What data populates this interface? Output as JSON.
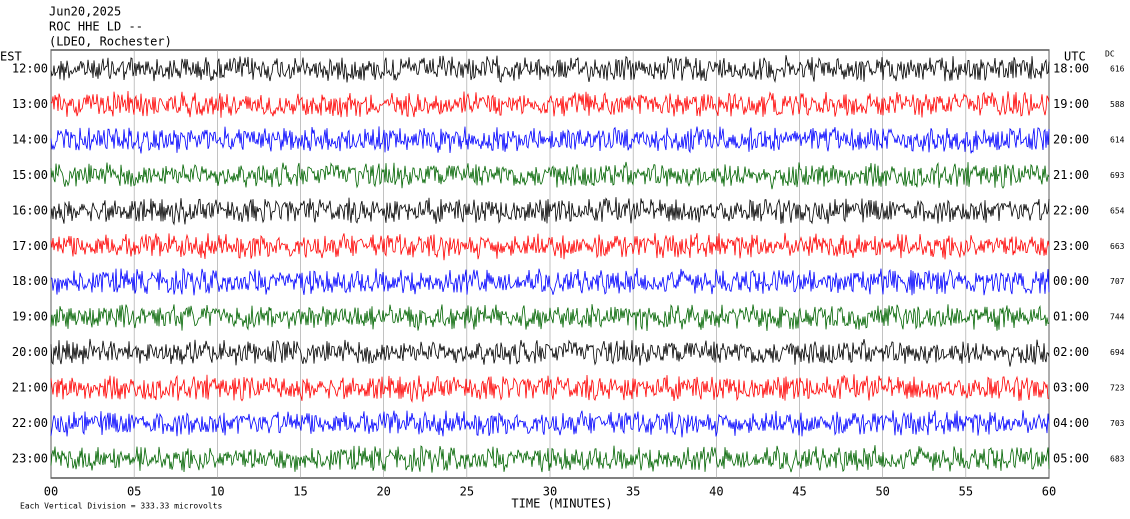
{
  "chart_data": {
    "type": "helicorder",
    "title": "Jun20,2025",
    "subtitle": "ROC HHE LD --",
    "source": "(LDEO, Rochester)",
    "left_axis_label": "EST",
    "right_axis_label": "UTC",
    "dc_label": "DC",
    "xlabel": "TIME (MINUTES)",
    "note": "Each Vertical Division =  333.33 microvolts",
    "categories": [
      "12:00",
      "13:00",
      "14:00",
      "15:00",
      "16:00",
      "17:00",
      "18:00",
      "19:00",
      "20:00",
      "21:00",
      "22:00",
      "23:00"
    ],
    "right_categories": [
      "18:00",
      "19:00",
      "20:00",
      "21:00",
      "22:00",
      "23:00",
      "00:00",
      "01:00",
      "02:00",
      "03:00",
      "04:00",
      "05:00"
    ],
    "dc_values": [
      616,
      588,
      614,
      693,
      654,
      663,
      707,
      744,
      694,
      723,
      703,
      683
    ],
    "colors": [
      "#000000",
      "#ff0000",
      "#0000ff",
      "#006400"
    ],
    "xlim": [
      0,
      60
    ],
    "xticks": [
      {
        "value": 0,
        "label": "00"
      },
      {
        "value": 5,
        "label": "05"
      },
      10,
      15,
      20,
      25,
      30,
      35,
      40,
      45,
      50,
      55,
      60
    ],
    "grid": true
  }
}
